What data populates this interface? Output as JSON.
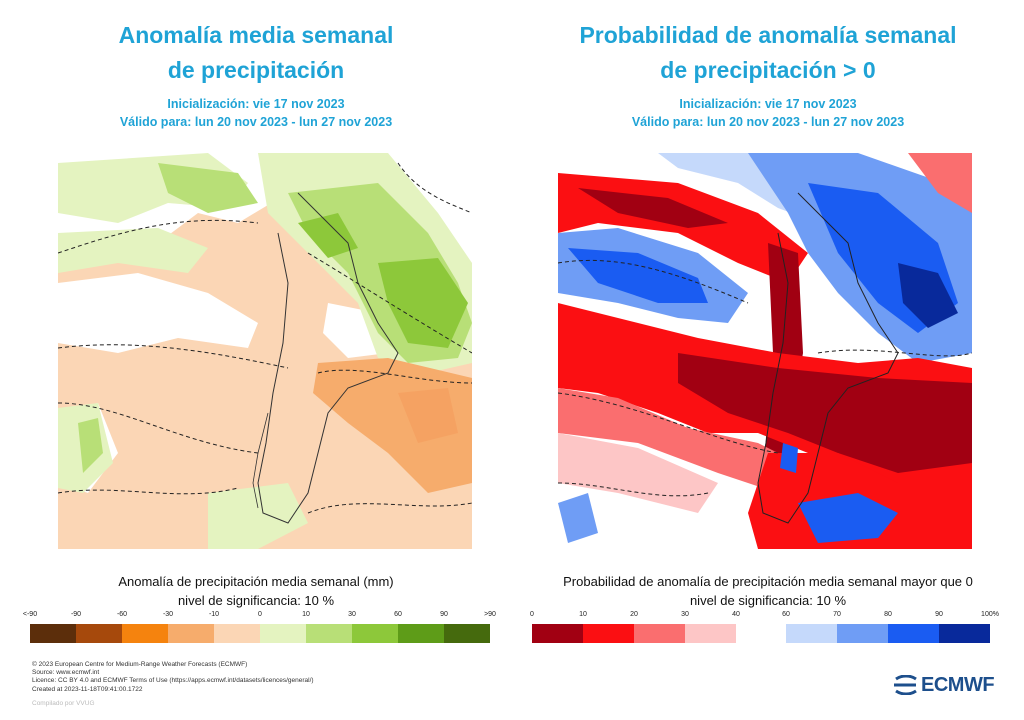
{
  "left": {
    "title_line1": "Anomalía media semanal",
    "title_line2": "de precipitación",
    "init": "Inicialización: vie 17 nov 2023",
    "valid": "Válido para: lun 20 nov 2023 - lun 27 nov 2023",
    "colorbar_title": "Anomalía de precipitación media semanal (mm)",
    "significance": "nivel de significancia: 10 %",
    "colorbar_labels": [
      "<-90",
      "-90",
      "-60",
      "-30",
      "-10",
      "0",
      "10",
      "30",
      "60",
      "90",
      ">90"
    ],
    "colorbar_colors": [
      "#5c2e0b",
      "#a6490c",
      "#f5830e",
      "#f6ac6c",
      "#fbd6b5",
      "#e4f3c0",
      "#b8df77",
      "#8dc83a",
      "#5e9c18",
      "#456a0d"
    ]
  },
  "right": {
    "title_line1": "Probabilidad de anomalía semanal",
    "title_line2": "de precipitación > 0",
    "init": "Inicialización: vie 17 nov 2023",
    "valid": "Válido para: lun 20 nov 2023 - lun 27 nov 2023",
    "colorbar_title": "Probabilidad de anomalía de precipitación media semanal mayor que 0",
    "significance": "nivel de significancia: 10 %",
    "colorbar_labels_low": [
      "0",
      "10",
      "20",
      "30",
      "40"
    ],
    "colorbar_labels_high": [
      "60",
      "70",
      "80",
      "90",
      "100%"
    ],
    "colorbar_colors_low": [
      "#a10012",
      "#fb0f12",
      "#fa6e6f",
      "#fdc6c6"
    ],
    "colorbar_colors_high": [
      "#c5d9fb",
      "#6f9df5",
      "#1a5cf2",
      "#08299b"
    ]
  },
  "footer": {
    "line1": "© 2023 European Centre for Medium-Range Weather Forecasts (ECMWF)",
    "line2": "Source: www.ecmwf.int",
    "line3": "Licence: CC BY 4.0 and ECMWF Terms of Use (https://apps.ecmwf.int/datasets/licences/general/)",
    "line4": "Created at 2023-11-18T09:41:00.1722",
    "compiled": "Compilado por VVUG"
  },
  "logo": "ECMWF"
}
